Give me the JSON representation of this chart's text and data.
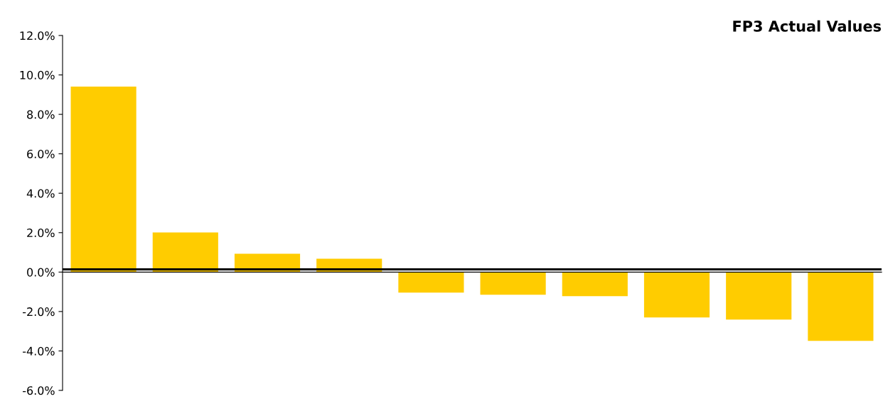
{
  "chart_data": {
    "type": "bar",
    "title": "FP3 Actual Values",
    "categories": [
      null,
      null,
      null,
      null,
      null,
      null,
      null,
      null,
      null,
      null
    ],
    "series": [
      {
        "color": "#ffcc00",
        "values": [
          9.41,
          2.01,
          0.93,
          0.68,
          -1.04,
          -1.15,
          -1.22,
          -2.3,
          -2.41,
          -3.49
        ]
      }
    ],
    "ref_lines": [
      {
        "axis": "y",
        "value": 0.14,
        "color": "#000000",
        "line_style": "solid"
      }
    ],
    "ylim": [
      -6,
      12
    ],
    "yticks": [
      {
        "value": -6,
        "label": "-6.0%"
      },
      {
        "value": -4,
        "label": "-4.0%"
      },
      {
        "value": -2,
        "label": "-2.0%"
      },
      {
        "value": 0,
        "label": "0.0%"
      },
      {
        "value": 2,
        "label": "2.0%"
      },
      {
        "value": 4,
        "label": "4.0%"
      },
      {
        "value": 6,
        "label": "6.0%"
      },
      {
        "value": 8,
        "label": "8.0%"
      },
      {
        "value": 10,
        "label": "10.0%"
      },
      {
        "value": 12,
        "label": "12.0%"
      }
    ],
    "tick_labels": "y"
  }
}
